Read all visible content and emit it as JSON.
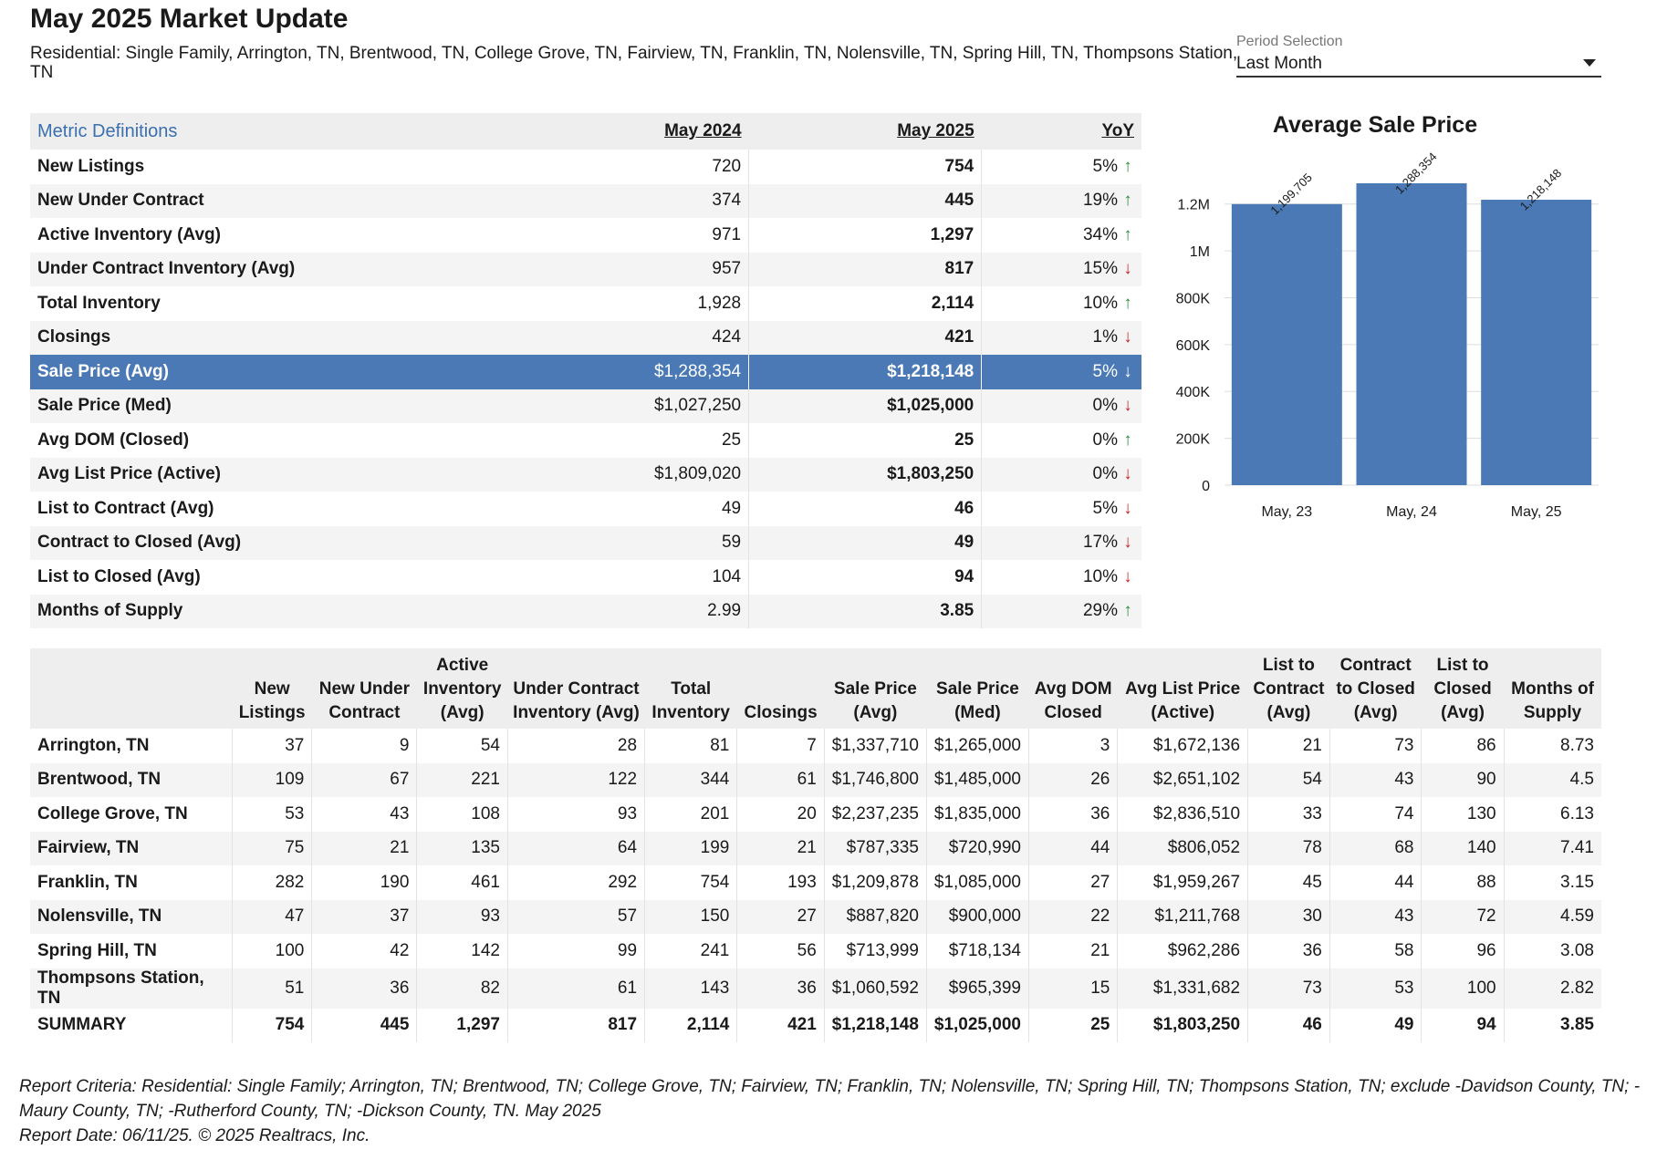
{
  "header": {
    "title": "May 2025 Market Update",
    "subtitle": "Residential: Single Family, Arrington, TN, Brentwood, TN, College Grove, TN, Fairview, TN, Franklin, TN, Nolensville, TN, Spring Hill, TN, Thompsons Station, TN"
  },
  "period": {
    "label": "Period Selection",
    "value": "Last Month"
  },
  "metrics": {
    "definitions_link": "Metric Definitions",
    "col_prev": "May 2024",
    "col_cur": "May 2025",
    "col_yoy": "YoY",
    "rows": [
      {
        "label": "New Listings",
        "prev": "720",
        "cur": "754",
        "yoy": "5%",
        "dir": "up"
      },
      {
        "label": "New Under Contract",
        "prev": "374",
        "cur": "445",
        "yoy": "19%",
        "dir": "up"
      },
      {
        "label": "Active Inventory (Avg)",
        "prev": "971",
        "cur": "1,297",
        "yoy": "34%",
        "dir": "up"
      },
      {
        "label": "Under Contract Inventory (Avg)",
        "prev": "957",
        "cur": "817",
        "yoy": "15%",
        "dir": "down"
      },
      {
        "label": "Total Inventory",
        "prev": "1,928",
        "cur": "2,114",
        "yoy": "10%",
        "dir": "up"
      },
      {
        "label": "Closings",
        "prev": "424",
        "cur": "421",
        "yoy": "1%",
        "dir": "down"
      },
      {
        "label": "Sale Price (Avg)",
        "prev": "$1,288,354",
        "cur": "$1,218,148",
        "yoy": "5%",
        "dir": "down"
      },
      {
        "label": "Sale Price (Med)",
        "prev": "$1,027,250",
        "cur": "$1,025,000",
        "yoy": "0%",
        "dir": "down"
      },
      {
        "label": "Avg DOM (Closed)",
        "prev": "25",
        "cur": "25",
        "yoy": "0%",
        "dir": "up"
      },
      {
        "label": "Avg List Price (Active)",
        "prev": "$1,809,020",
        "cur": "$1,803,250",
        "yoy": "0%",
        "dir": "down"
      },
      {
        "label": "List to Contract (Avg)",
        "prev": "49",
        "cur": "46",
        "yoy": "5%",
        "dir": "down"
      },
      {
        "label": "Contract to Closed (Avg)",
        "prev": "59",
        "cur": "49",
        "yoy": "17%",
        "dir": "down"
      },
      {
        "label": "List to Closed (Avg)",
        "prev": "104",
        "cur": "94",
        "yoy": "10%",
        "dir": "down"
      },
      {
        "label": "Months of Supply",
        "prev": "2.99",
        "cur": "3.85",
        "yoy": "29%",
        "dir": "up"
      }
    ],
    "selected_row": "Sale Price (Avg)"
  },
  "chart_data": {
    "type": "bar",
    "title": "Average Sale Price",
    "categories": [
      "May, 23",
      "May, 24",
      "May, 25"
    ],
    "values": [
      1199705,
      1288354,
      1218148
    ],
    "data_labels": [
      "1,199,705",
      "1,288,354",
      "1,218,148"
    ],
    "yticks": [
      0,
      200000,
      400000,
      600000,
      800000,
      1000000,
      1200000
    ],
    "ytick_labels": [
      "0",
      "200K",
      "400K",
      "600K",
      "800K",
      "1M",
      "1.2M"
    ],
    "ylim": [
      0,
      1300000
    ],
    "grid": true,
    "bar_color": "#4a79b6"
  },
  "summary": {
    "headers": [
      "",
      "New Listings",
      "New Under Contract",
      "Active Inventory (Avg)",
      "Under Contract Inventory (Avg)",
      "Total Inventory",
      "Closings",
      "Sale Price (Avg)",
      "Sale Price (Med)",
      "Avg DOM Closed",
      "Avg List Price (Active)",
      "List to Contract (Avg)",
      "Contract to Closed (Avg)",
      "List to Closed (Avg)",
      "Months of Supply"
    ],
    "rows": [
      [
        "Arrington, TN",
        "37",
        "9",
        "54",
        "28",
        "81",
        "7",
        "$1,337,710",
        "$1,265,000",
        "3",
        "$1,672,136",
        "21",
        "73",
        "86",
        "8.73"
      ],
      [
        "Brentwood, TN",
        "109",
        "67",
        "221",
        "122",
        "344",
        "61",
        "$1,746,800",
        "$1,485,000",
        "26",
        "$2,651,102",
        "54",
        "43",
        "90",
        "4.5"
      ],
      [
        "College Grove, TN",
        "53",
        "43",
        "108",
        "93",
        "201",
        "20",
        "$2,237,235",
        "$1,835,000",
        "36",
        "$2,836,510",
        "33",
        "74",
        "130",
        "6.13"
      ],
      [
        "Fairview, TN",
        "75",
        "21",
        "135",
        "64",
        "199",
        "21",
        "$787,335",
        "$720,990",
        "44",
        "$806,052",
        "78",
        "68",
        "140",
        "7.41"
      ],
      [
        "Franklin, TN",
        "282",
        "190",
        "461",
        "292",
        "754",
        "193",
        "$1,209,878",
        "$1,085,000",
        "27",
        "$1,959,267",
        "45",
        "44",
        "88",
        "3.15"
      ],
      [
        "Nolensville, TN",
        "47",
        "37",
        "93",
        "57",
        "150",
        "27",
        "$887,820",
        "$900,000",
        "22",
        "$1,211,768",
        "30",
        "43",
        "72",
        "4.59"
      ],
      [
        "Spring Hill, TN",
        "100",
        "42",
        "142",
        "99",
        "241",
        "56",
        "$713,999",
        "$718,134",
        "21",
        "$962,286",
        "36",
        "58",
        "96",
        "3.08"
      ],
      [
        "Thompsons Station, TN",
        "51",
        "36",
        "82",
        "61",
        "143",
        "36",
        "$1,060,592",
        "$965,399",
        "15",
        "$1,331,682",
        "73",
        "53",
        "100",
        "2.82"
      ]
    ],
    "total": [
      "SUMMARY",
      "754",
      "445",
      "1,297",
      "817",
      "2,114",
      "421",
      "$1,218,148",
      "$1,025,000",
      "25",
      "$1,803,250",
      "46",
      "49",
      "94",
      "3.85"
    ]
  },
  "footer": {
    "criteria": "Report Criteria: Residential: Single Family; Arrington, TN; Brentwood, TN; College Grove, TN; Fairview, TN; Franklin, TN; Nolensville, TN; Spring Hill, TN; Thompsons Station, TN; exclude -Davidson County, TN; -Maury County, TN; -Rutherford County, TN; -Dickson County, TN. May 2025",
    "report_date": "Report Date: 06/11/25. © 2025 Realtracs, Inc."
  },
  "icons": {
    "up_arrow": "arrow-up-icon",
    "down_arrow": "arrow-down-icon",
    "dropdown": "chevron-down-icon"
  }
}
